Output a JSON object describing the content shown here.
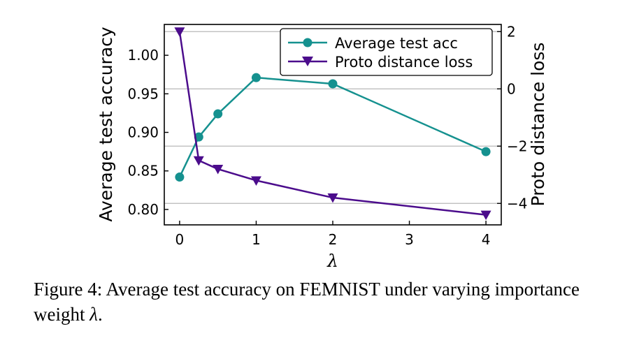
{
  "chart_data": {
    "type": "line",
    "x": [
      0,
      0.25,
      0.5,
      1,
      2,
      4
    ],
    "xlabel": "λ",
    "xlim": [
      -0.2,
      4.2
    ],
    "xticks": [
      0,
      1,
      2,
      3,
      4
    ],
    "ylabel": "Average test accuracy",
    "ylim": [
      0.78,
      1.04
    ],
    "yticks": [
      "0.80",
      "0.85",
      "0.90",
      "0.95",
      "1.00"
    ],
    "y2label": "Proto distance loss",
    "y2lim": [
      -4.75,
      2.25
    ],
    "y2ticks": [
      2,
      0,
      -2,
      -4
    ],
    "y2gridlines": [
      2,
      0,
      -2,
      -4
    ],
    "grid": "horizontal lines at right-axis ticks",
    "legend_position": "upper-right",
    "series": [
      {
        "name": "Average test acc",
        "axis": "left",
        "color": "#15918f",
        "marker": "circle",
        "values": [
          0.842,
          0.894,
          0.924,
          0.971,
          0.963,
          0.875
        ]
      },
      {
        "name": "Proto distance loss",
        "axis": "right",
        "color": "#4b0c8c",
        "marker": "triangle-down",
        "values": [
          2.0,
          -2.5,
          -2.8,
          -3.2,
          -3.8,
          -4.4
        ]
      }
    ]
  },
  "caption": {
    "prefix": "Figure 4: Average test accuracy on FEMNIST under varying importance weight ",
    "lambda": "λ",
    "suffix": "."
  }
}
